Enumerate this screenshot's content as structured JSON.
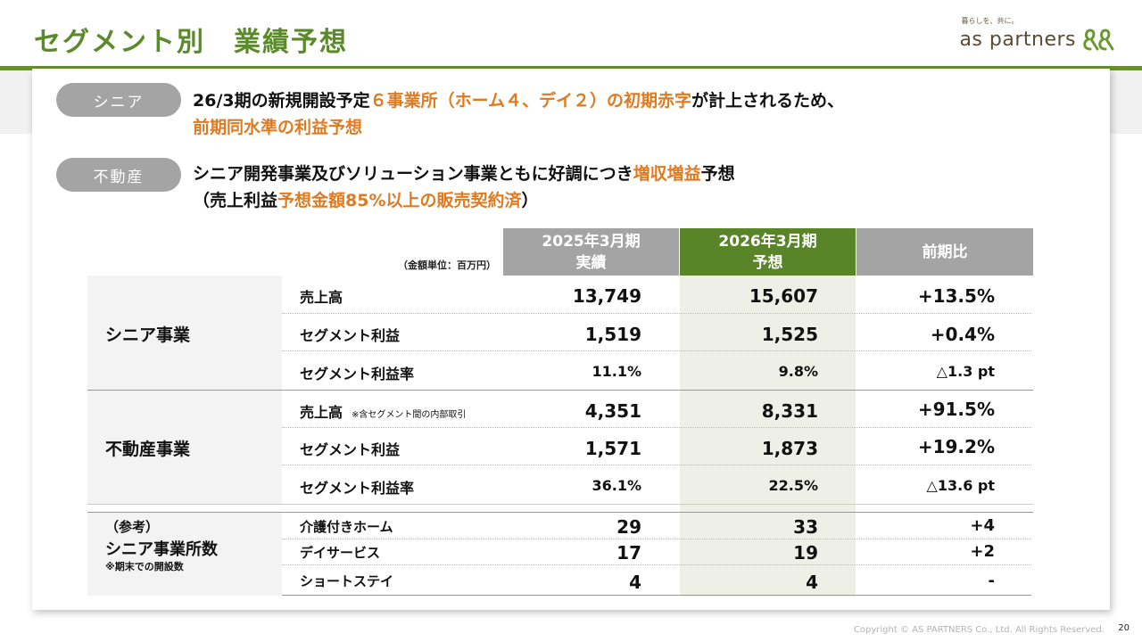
{
  "header": {
    "title": "セグメント別　業績予想",
    "logo_tagline": "暮らしを、共に。",
    "logo_name": "as partners"
  },
  "segments": {
    "senior": {
      "badge": "シニア",
      "line1_a": "26/3期の新規開設予定",
      "line1_b": "６事業所（ホーム４、デイ２）の初期赤字",
      "line1_c": "が計上されるため、",
      "line2": "前期同水準の利益予想"
    },
    "realestate": {
      "badge": "不動産",
      "line1_a": "シニア開発事業及びソリューション事業ともに好調につき",
      "line1_b": "増収増益",
      "line1_c": "予想",
      "line2_a": "（売上利益",
      "line2_b": "予想金額85%以上の販売契約済",
      "line2_c": "）"
    }
  },
  "table": {
    "unit_note": "（金額単位：百万円）",
    "col_actual": [
      "2025年3月期",
      "実績"
    ],
    "col_forecast": [
      "2026年3月期",
      "予想"
    ],
    "col_change": "前期比",
    "senior_business": {
      "label": "シニア事業",
      "rows": [
        {
          "label": "売上高",
          "actual": "13,749",
          "forecast": "15,607",
          "change": "+13.5%"
        },
        {
          "label": "セグメント利益",
          "actual": "1,519",
          "forecast": "1,525",
          "change": "+0.4%"
        },
        {
          "label": "セグメント利益率",
          "actual": "11.1%",
          "forecast": "9.8%",
          "change": "△1.3 pt"
        }
      ]
    },
    "realestate_business": {
      "label": "不動産事業",
      "rows": [
        {
          "label": "売上高",
          "note": "※含セグメント間の内部取引",
          "actual": "4,351",
          "forecast": "8,331",
          "change": "+91.5%"
        },
        {
          "label": "セグメント利益",
          "actual": "1,571",
          "forecast": "1,873",
          "change": "+19.2%"
        },
        {
          "label": "セグメント利益率",
          "actual": "36.1%",
          "forecast": "22.5%",
          "change": "△13.6 pt"
        }
      ]
    },
    "reference": {
      "label_1": "（参考）",
      "label_2": "シニア事業所数",
      "label_3": "※期末での開設数",
      "rows": [
        {
          "label": "介護付きホーム",
          "actual": "29",
          "forecast": "33",
          "change": "+4"
        },
        {
          "label": "デイサービス",
          "actual": "17",
          "forecast": "19",
          "change": "+2"
        },
        {
          "label": "ショートステイ",
          "actual": "4",
          "forecast": "4",
          "change": "-"
        }
      ]
    }
  },
  "footer": {
    "copyright": "Copyright © AS PARTNERS Co., Ltd. All Rights Reserved.",
    "page": "20"
  },
  "colors": {
    "brand_green": "#5b8a2b",
    "header_gray": "#a4a4a4",
    "header_green": "#5a8428",
    "highlight_orange": "#e07a20"
  }
}
